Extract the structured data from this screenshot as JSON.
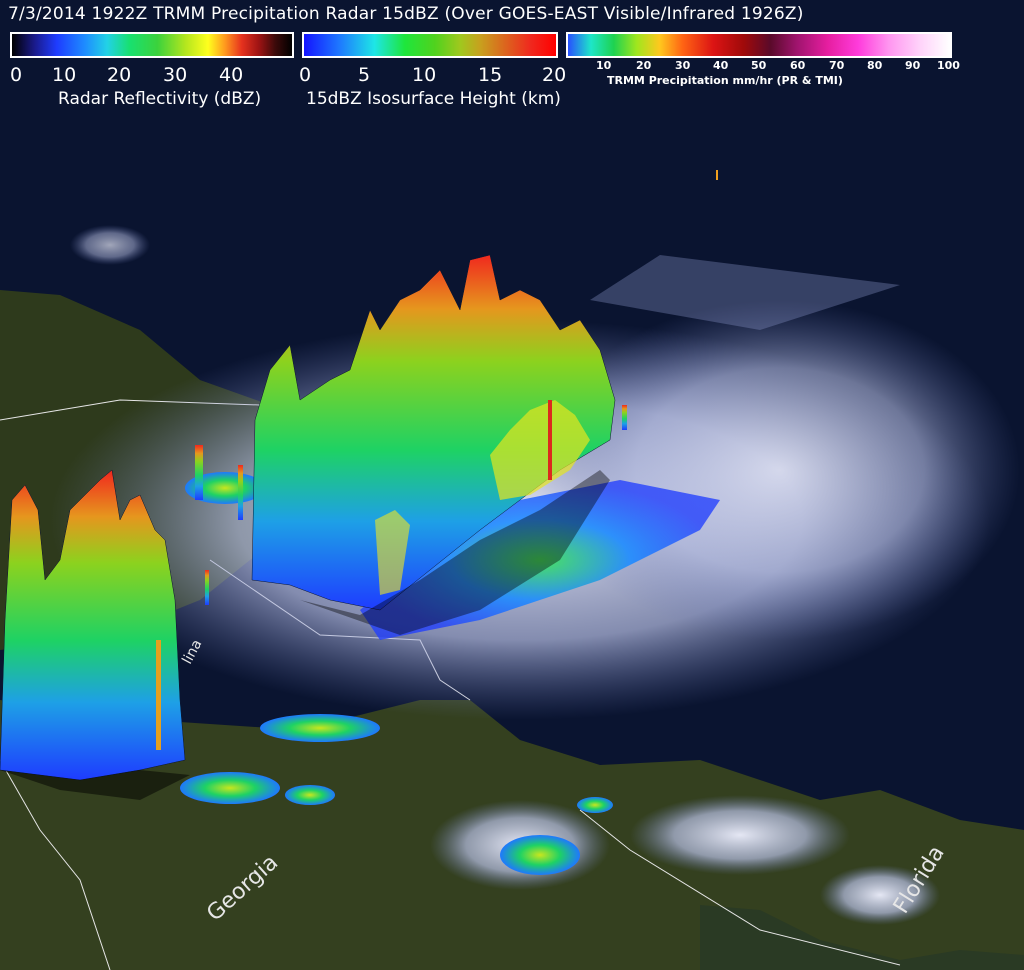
{
  "title": "7/3/2014 1922Z TRMM Precipitation Radar 15dBZ (Over GOES-EAST Visible/Infrared 1926Z)",
  "colorbars": {
    "reflectivity": {
      "label": "Radar Reflectivity (dBZ)",
      "ticks": [
        "0",
        "10",
        "20",
        "30",
        "40"
      ]
    },
    "height": {
      "label": "15dBZ Isosurface Height (km)",
      "ticks": [
        "0",
        "5",
        "10",
        "15",
        "20"
      ]
    },
    "rain_rate": {
      "label": "TRMM Precipitation mm/hr (PR & TMI)",
      "ticks": [
        "10",
        "20",
        "30",
        "40",
        "50",
        "60",
        "70",
        "80",
        "90",
        "100"
      ]
    }
  },
  "map_labels": {
    "georgia": "Georgia",
    "florida": "Florida",
    "carolina_fragment": "lina"
  },
  "colors": {
    "ocean": "#0a1430",
    "land": "#2e3a1c",
    "cloud": "#d8dcf0",
    "border": "#e6e6e6"
  }
}
